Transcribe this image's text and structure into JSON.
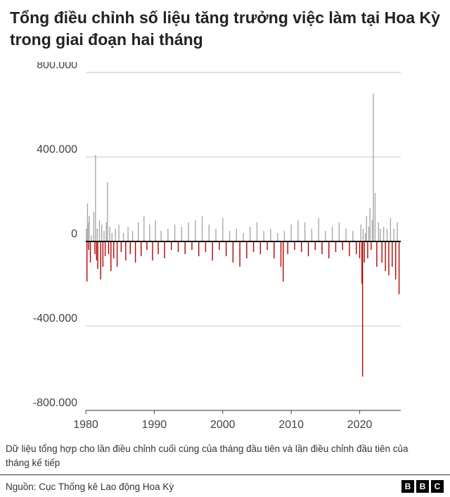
{
  "title": "Tổng điều chỉnh số liệu tăng trưởng việc làm tại Hoa Kỳ trong giai đoạn hai tháng",
  "note": "Dữ liệu tổng hợp cho lần điều chỉnh cuối cùng của tháng đầu tiên và lần điều chỉnh đầu tiên của tháng kế tiếp",
  "source": "Nguồn: Cục Thống kê Lao động Hoa Kỳ",
  "logo": [
    "B",
    "B",
    "C"
  ],
  "colors": {
    "positive": "#a8a8a8",
    "negative": "#b80000",
    "grid": "#d9d9d9",
    "zero": "#000000"
  },
  "chart_data": {
    "type": "bar",
    "title": "Tổng điều chỉnh số liệu tăng trưởng việc làm tại Hoa Kỳ trong giai đoạn hai tháng",
    "xlabel": "",
    "ylabel": "",
    "x_range": [
      1980,
      2026
    ],
    "ylim": [
      -800000,
      800000
    ],
    "y_ticks": [
      800000,
      400000,
      0,
      -400000,
      -800000
    ],
    "y_tick_labels": [
      "800.000",
      "400.000",
      "0",
      "-400.000",
      "-800.000"
    ],
    "x_ticks": [
      1980,
      1990,
      2000,
      2010,
      2020
    ],
    "x_tick_labels": [
      "1980",
      "1990",
      "2000",
      "2010",
      "2020"
    ],
    "grid": true,
    "series": [
      {
        "x": [
          1980.08,
          1980.17,
          1980.25,
          1980.33,
          1980.42,
          1980.5,
          1980.67,
          1980.83,
          1981.17,
          1981.33,
          1981.42,
          1981.58,
          1981.67,
          1981.75,
          1982.0,
          1982.17,
          1982.33,
          1982.5,
          1982.67,
          1982.83,
          1983.0,
          1983.17,
          1983.33,
          1983.5,
          1983.67,
          1983.83,
          1984.08,
          1984.33,
          1984.58,
          1984.83,
          1985.17,
          1985.5,
          1985.83,
          1986.17,
          1986.5,
          1986.83,
          1987.25,
          1987.67,
          1988.08,
          1988.5,
          1988.92,
          1989.33,
          1989.75,
          1990.17,
          1990.58,
          1991.0,
          1991.5,
          1992.0,
          1992.5,
          1993.0,
          1993.5,
          1994.0,
          1994.5,
          1995.0,
          1995.5,
          1996.0,
          1996.5,
          1997.0,
          1997.5,
          1998.0,
          1998.5,
          1999.0,
          1999.5,
          2000.0,
          2000.5,
          2001.0,
          2001.5,
          2002.0,
          2002.5,
          2003.0,
          2003.5,
          2004.0,
          2004.5,
          2005.0,
          2005.5,
          2006.0,
          2006.5,
          2007.0,
          2007.5,
          2008.0,
          2008.5,
          2008.83,
          2009.0,
          2009.5,
          2010.0,
          2010.5,
          2011.0,
          2011.5,
          2012.0,
          2012.5,
          2013.0,
          2013.5,
          2014.0,
          2014.5,
          2015.0,
          2015.5,
          2016.0,
          2016.5,
          2017.0,
          2017.5,
          2018.0,
          2018.5,
          2019.0,
          2019.5,
          2020.0,
          2020.17,
          2020.33,
          2020.42,
          2020.5,
          2020.67,
          2020.83,
          2021.0,
          2021.17,
          2021.33,
          2021.5,
          2021.67,
          2021.83,
          2022.0,
          2022.25,
          2022.5,
          2022.75,
          2023.0,
          2023.25,
          2023.5,
          2023.75,
          2024.0,
          2024.25,
          2024.5,
          2024.75,
          2025.0,
          2025.25,
          2025.5,
          2025.75
        ],
        "values": [
          60000,
          -190000,
          180000,
          90000,
          -40000,
          120000,
          -100000,
          30000,
          140000,
          -60000,
          410000,
          -90000,
          60000,
          -130000,
          100000,
          -180000,
          80000,
          -120000,
          50000,
          -70000,
          90000,
          280000,
          -60000,
          70000,
          -140000,
          40000,
          -80000,
          60000,
          -120000,
          80000,
          -50000,
          40000,
          -90000,
          70000,
          -60000,
          50000,
          -100000,
          90000,
          -70000,
          120000,
          -40000,
          80000,
          -90000,
          100000,
          -60000,
          50000,
          -80000,
          60000,
          -40000,
          80000,
          -50000,
          70000,
          -60000,
          90000,
          -40000,
          100000,
          -70000,
          120000,
          -50000,
          80000,
          -90000,
          60000,
          -40000,
          110000,
          -70000,
          50000,
          -100000,
          60000,
          -120000,
          40000,
          -80000,
          70000,
          -50000,
          90000,
          -60000,
          50000,
          -40000,
          60000,
          -80000,
          40000,
          -120000,
          -190000,
          50000,
          -60000,
          80000,
          -40000,
          100000,
          -50000,
          90000,
          -70000,
          60000,
          -40000,
          110000,
          -60000,
          50000,
          -80000,
          70000,
          -50000,
          90000,
          -40000,
          60000,
          -70000,
          50000,
          -60000,
          -80000,
          80000,
          -200000,
          -640000,
          60000,
          -100000,
          40000,
          120000,
          -80000,
          70000,
          160000,
          -40000,
          100000,
          700000,
          230000,
          -120000,
          90000,
          60000,
          -100000,
          70000,
          -140000,
          60000,
          -160000,
          110000,
          -120000,
          60000,
          -180000,
          90000,
          -250000
        ]
      }
    ]
  }
}
